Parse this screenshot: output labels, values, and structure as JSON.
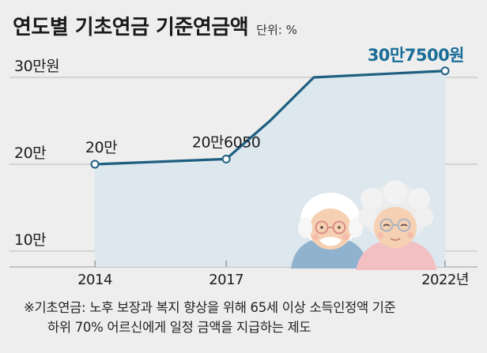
{
  "header": {
    "title": "연도별 기초연금 기준연금액",
    "unit": "단위: %"
  },
  "chart_data": {
    "type": "line",
    "title": "연도별 기초연금 기준연금액",
    "unit": "단위: %",
    "x_ticks": [
      "2014",
      "2017",
      "2022년"
    ],
    "y_ticks": [
      "10만",
      "20만",
      "30만원"
    ],
    "ylim": [
      100000,
      300000
    ],
    "grid": "horizontal",
    "series": [
      {
        "color": "#1e5f80",
        "points": [
          {
            "x": 2014,
            "y": 200000,
            "label": "20만",
            "marker": true
          },
          {
            "x": 2017,
            "y": 206050,
            "label": "20만6050",
            "marker": true
          },
          {
            "x": 2018,
            "y": 250000,
            "label": "",
            "marker": false
          },
          {
            "x": 2019,
            "y": 300000,
            "label": "",
            "marker": false
          },
          {
            "x": 2022,
            "y": 307500,
            "label": "30만7500원",
            "marker": true
          }
        ]
      }
    ],
    "colors": {
      "line": "#1e5f80",
      "area": "#dde7ee",
      "highlight_label": "#1a6d97"
    }
  },
  "footnote": {
    "line1": "※기초연금: 노후 보장과 복지 향상을 위해 65세 이상 소득인정액 기준",
    "line2": "하위 70% 어르신에게 일정 금액을 지급하는 제도"
  },
  "illustration": {
    "name": "elderly-couple-illustration"
  }
}
